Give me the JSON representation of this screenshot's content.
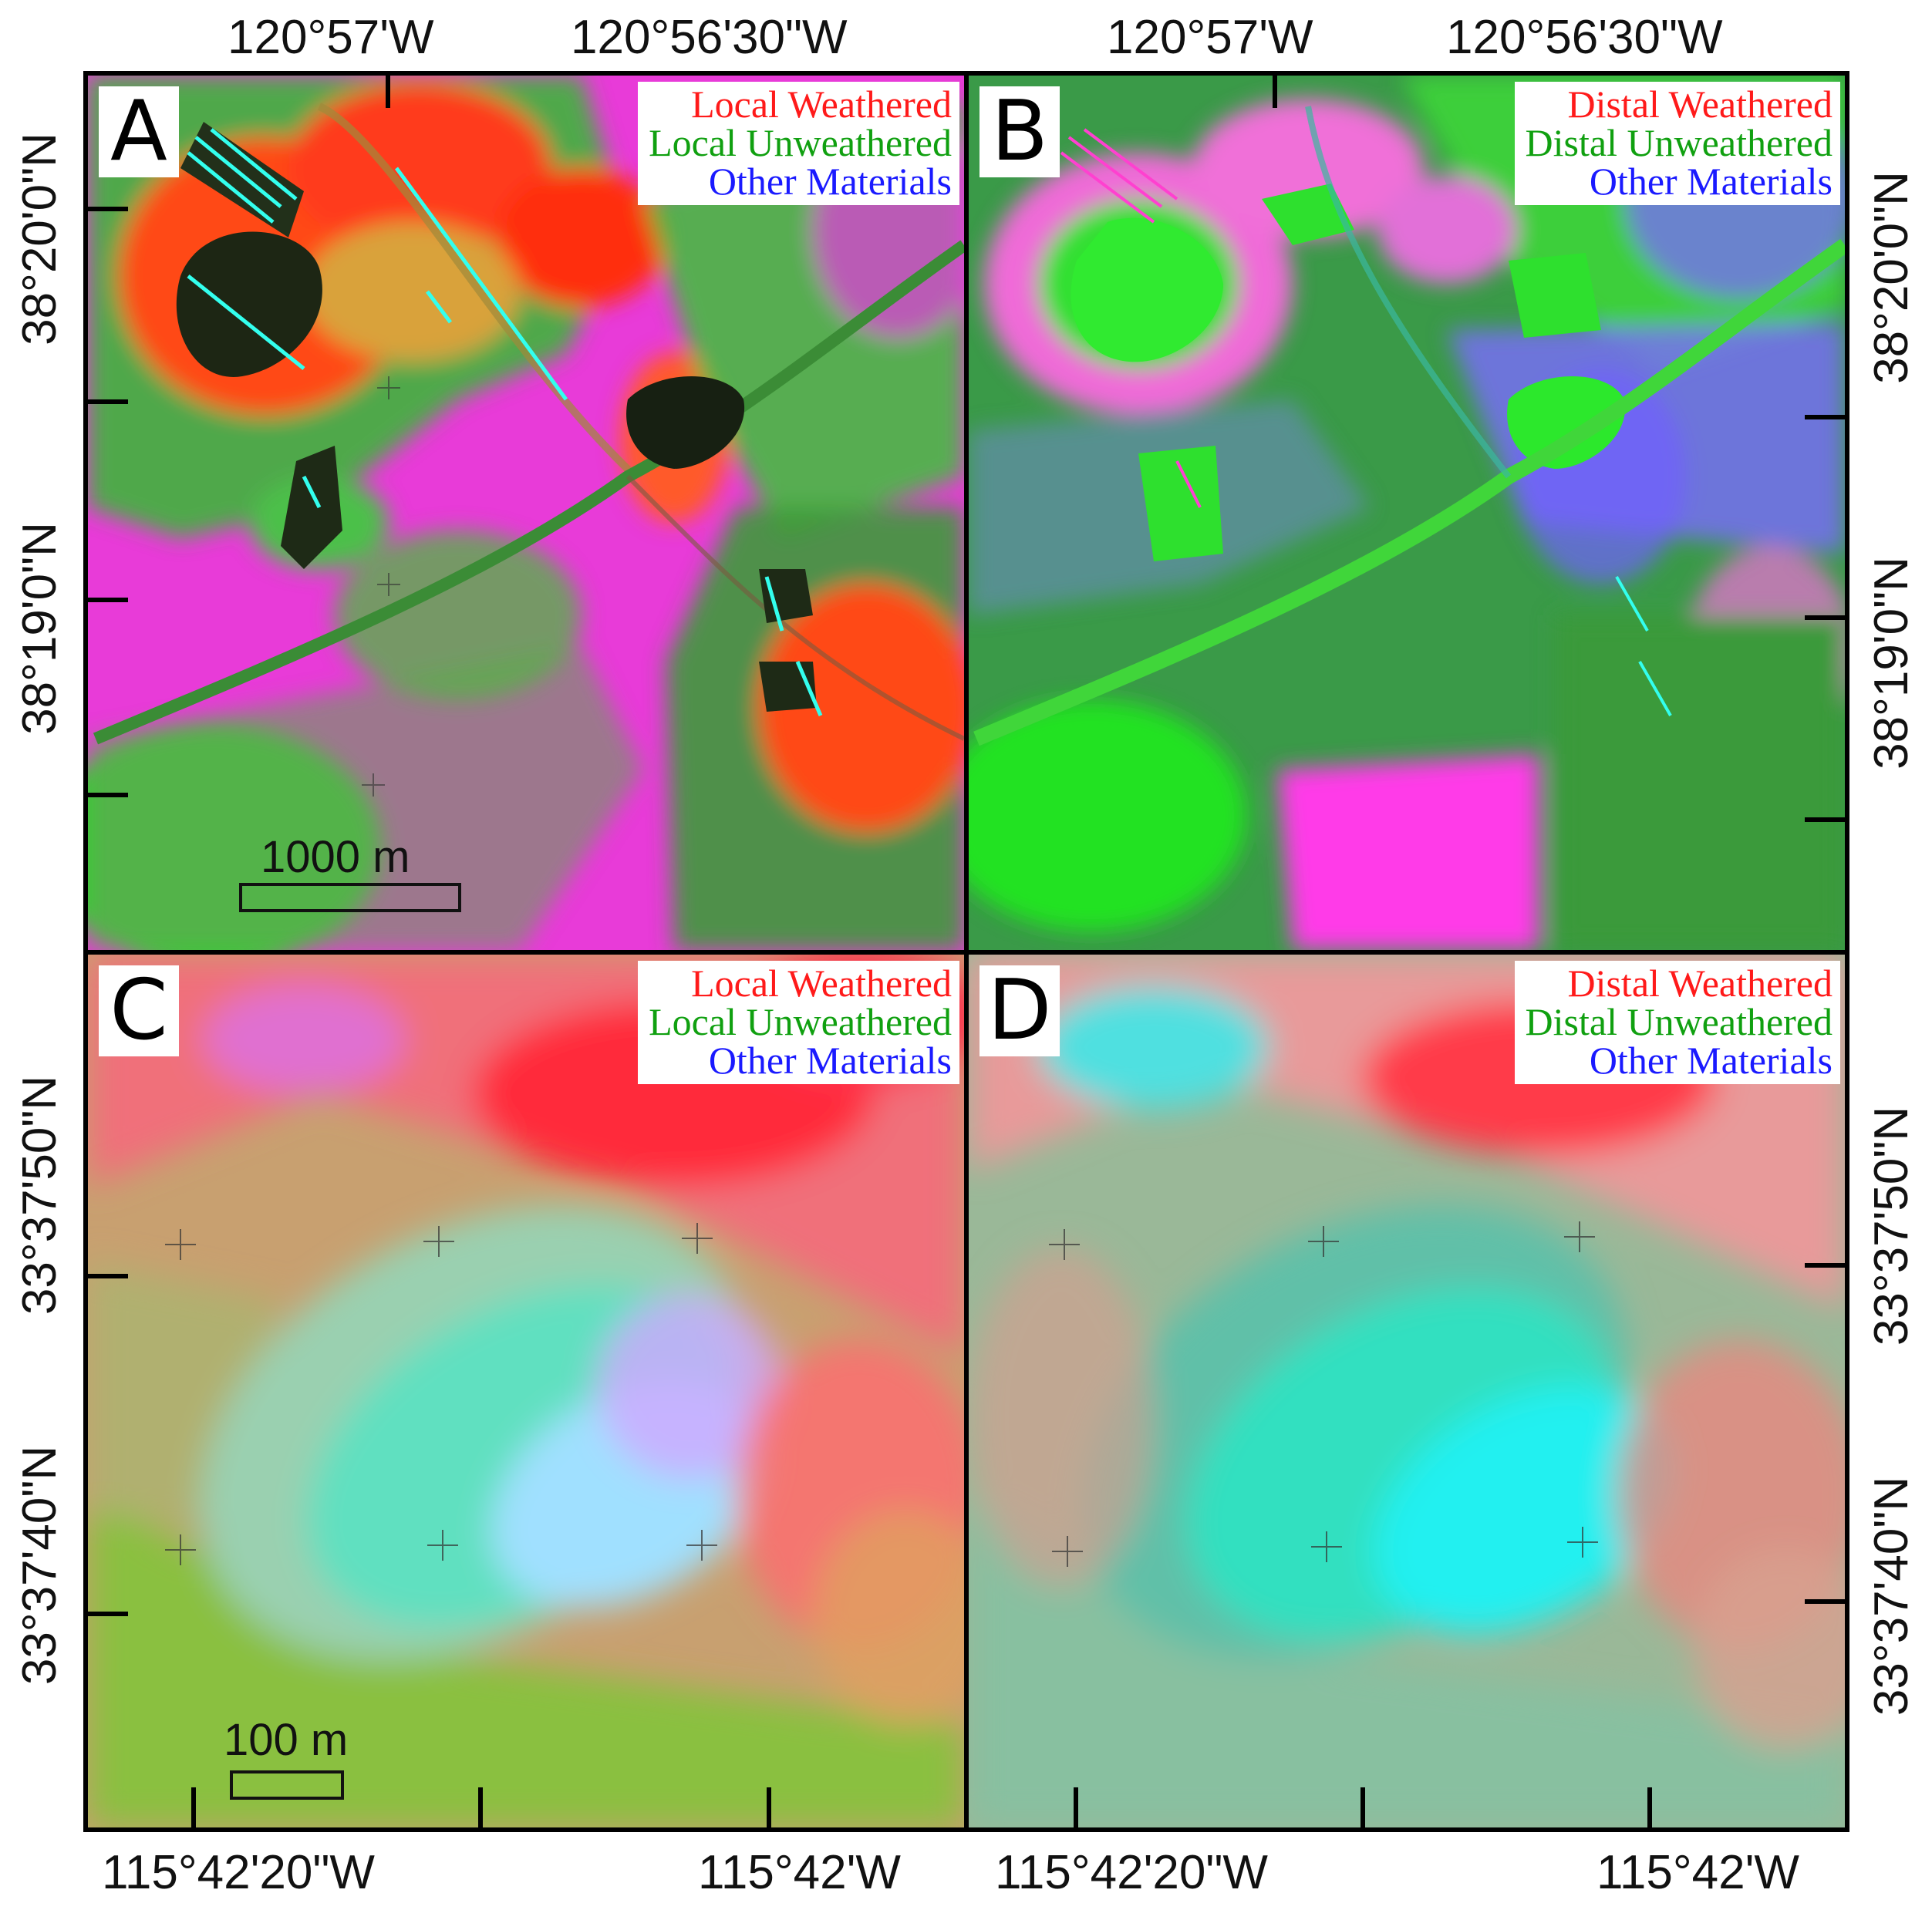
{
  "axes": {
    "top_lon": [
      "120°57'W",
      "120°56'30\"W"
    ],
    "top_right_lon": [
      "120°57'W",
      "120°56'30\"W"
    ],
    "bottom_lon": [
      "115°42'20\"W",
      "115°42'W"
    ],
    "bottom_right_lon": [
      "115°42'20\"W",
      "115°42'W"
    ],
    "left_lat_top": [
      "38°20'0\"N",
      "38°19'0\"N"
    ],
    "right_lat_top": [
      "38°20'0\"N",
      "38°19'0\"N"
    ],
    "left_lat_bottom": [
      "33°37'50\"N",
      "33°37'40\"N"
    ],
    "right_lat_bottom": [
      "33°37'50\"N",
      "33°37'40\"N"
    ]
  },
  "panels": [
    {
      "id": "A",
      "legend": [
        "Local Weathered",
        "Local Unweathered",
        "Other Materials"
      ],
      "scale_label": "1000 m"
    },
    {
      "id": "B",
      "legend": [
        "Distal Weathered",
        "Distal Unweathered",
        "Other Materials"
      ]
    },
    {
      "id": "C",
      "legend": [
        "Local Weathered",
        "Local Unweathered",
        "Other Materials"
      ],
      "scale_label": "100 m"
    },
    {
      "id": "D",
      "legend": [
        "Distal Weathered",
        "Distal Unweathered",
        "Other Materials"
      ]
    }
  ],
  "legend_colors": {
    "weathered": "#ff1a1a",
    "unweathered": "#10a010",
    "other": "#1a1aff"
  },
  "composite_colors": {
    "magenta": "#ff2ee0",
    "green": "#22d822",
    "dark": "#1b2a14",
    "red": "#ff2a10",
    "orange": "#ff7a1a",
    "blue": "#6a5cff",
    "cyan": "#33ffee"
  }
}
